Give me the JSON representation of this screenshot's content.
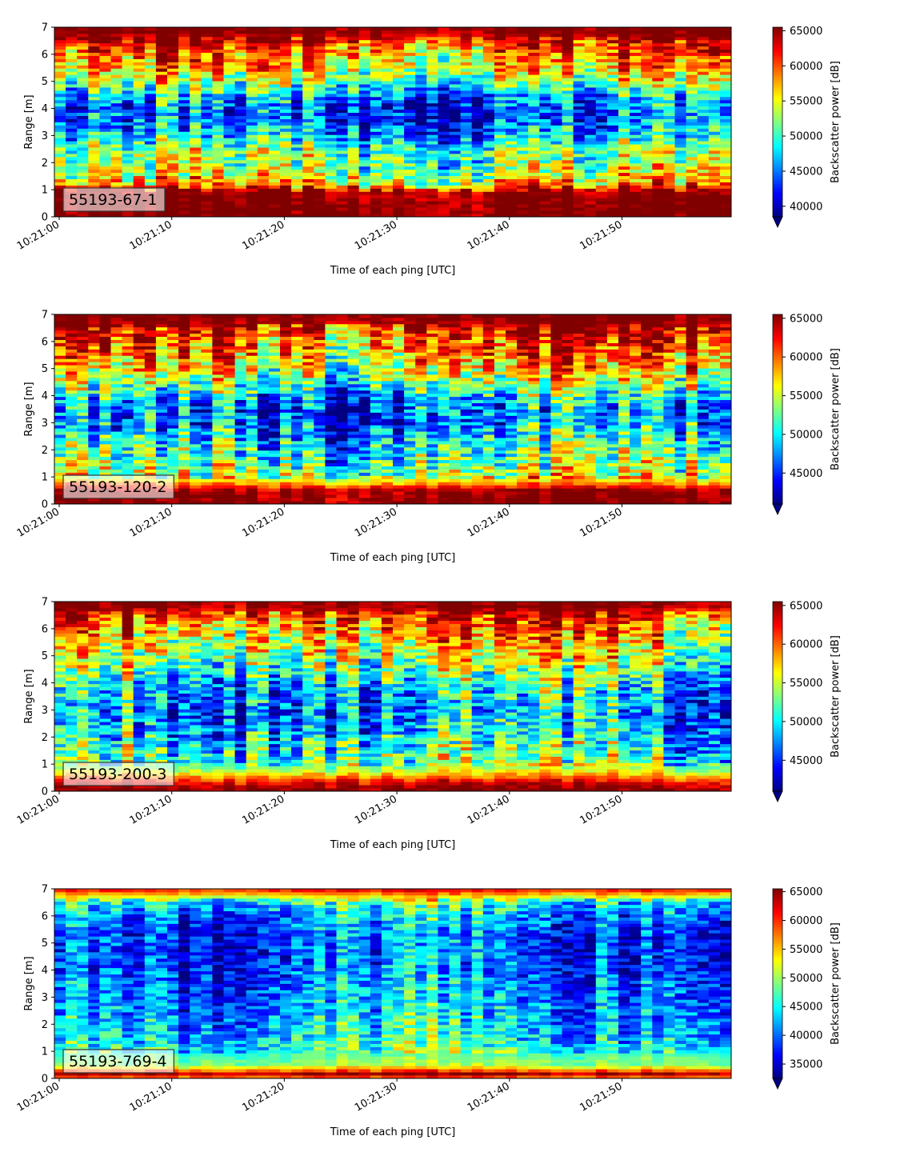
{
  "figure": {
    "colormap": "jet",
    "x_tick_labels": [
      "10:21:00",
      "10:21:10",
      "10:21:20",
      "10:21:30",
      "10:21:40",
      "10:21:50"
    ],
    "y_tick_labels": [
      "0",
      "1",
      "2",
      "3",
      "4",
      "5",
      "6",
      "7"
    ],
    "xlabel": "Time of each ping [UTC]",
    "ylabel": "Range [m]",
    "colorbar_label": "Backscatter power [dB]"
  },
  "chart_data": [
    {
      "type": "heatmap",
      "label": "55193-67-1",
      "xlabel": "Time of each ping [UTC]",
      "ylabel": "Range [m]",
      "x_ticks": [
        "10:21:00",
        "10:21:10",
        "10:21:20",
        "10:21:30",
        "10:21:40",
        "10:21:50"
      ],
      "x_range": [
        "10:21:00",
        "10:21:59"
      ],
      "ylim": [
        0,
        7
      ],
      "colorbar": {
        "label": "Backscatter power [dB]",
        "ticks": [
          40000,
          45000,
          50000,
          55000,
          60000,
          65000
        ],
        "vmin": 38500,
        "vmax": 65500,
        "extend": "min"
      },
      "profile": {
        "range_m": [
          0.0,
          0.2,
          0.6,
          1.0,
          1.2,
          1.6,
          2.0,
          2.5,
          3.0,
          3.5,
          4.0,
          4.5,
          5.0,
          5.5,
          6.0,
          6.5,
          6.8,
          7.0
        ],
        "mean_power": [
          65500,
          65500,
          65500,
          64000,
          57000,
          53500,
          52000,
          51500,
          46500,
          44000,
          43500,
          46000,
          52000,
          56000,
          58500,
          62000,
          65500,
          65500
        ]
      }
    },
    {
      "type": "heatmap",
      "label": "55193-120-2",
      "xlabel": "Time of each ping [UTC]",
      "ylabel": "Range [m]",
      "x_ticks": [
        "10:21:00",
        "10:21:10",
        "10:21:20",
        "10:21:30",
        "10:21:40",
        "10:21:50"
      ],
      "x_range": [
        "10:21:00",
        "10:21:59"
      ],
      "ylim": [
        0,
        7
      ],
      "colorbar": {
        "label": "Backscatter power [dB]",
        "ticks": [
          45000,
          50000,
          55000,
          60000,
          65000
        ],
        "vmin": 41000,
        "vmax": 65500,
        "extend": "min"
      },
      "profile": {
        "range_m": [
          0.0,
          0.1,
          0.5,
          0.8,
          1.0,
          1.5,
          2.0,
          2.5,
          3.0,
          3.5,
          4.0,
          4.5,
          5.0,
          5.5,
          6.0,
          6.5,
          6.8,
          7.0
        ],
        "mean_power": [
          65500,
          65500,
          65000,
          58000,
          54500,
          52500,
          51000,
          49000,
          46500,
          46500,
          49000,
          53000,
          56500,
          58500,
          60500,
          63000,
          65500,
          65500
        ]
      }
    },
    {
      "type": "heatmap",
      "label": "55193-200-3",
      "xlabel": "Time of each ping [UTC]",
      "ylabel": "Range [m]",
      "x_ticks": [
        "10:21:00",
        "10:21:10",
        "10:21:20",
        "10:21:30",
        "10:21:40",
        "10:21:50"
      ],
      "x_range": [
        "10:21:00",
        "10:21:59"
      ],
      "ylim": [
        0,
        7
      ],
      "colorbar": {
        "label": "Backscatter power [dB]",
        "ticks": [
          45000,
          50000,
          55000,
          60000,
          65000
        ],
        "vmin": 41000,
        "vmax": 65500,
        "extend": "min"
      },
      "profile": {
        "range_m": [
          0.0,
          0.1,
          0.4,
          0.7,
          1.0,
          1.5,
          2.0,
          2.5,
          3.0,
          3.5,
          4.0,
          4.5,
          5.0,
          5.5,
          6.0,
          6.5,
          6.8,
          7.0
        ],
        "mean_power": [
          65500,
          65500,
          62000,
          56000,
          53000,
          51500,
          50000,
          48500,
          47500,
          48500,
          50500,
          52500,
          55000,
          57000,
          59000,
          62000,
          65000,
          65500
        ]
      }
    },
    {
      "type": "heatmap",
      "label": "55193-769-4",
      "xlabel": "Time of each ping [UTC]",
      "ylabel": "Range [m]",
      "x_ticks": [
        "10:21:00",
        "10:21:10",
        "10:21:20",
        "10:21:30",
        "10:21:40",
        "10:21:50"
      ],
      "x_range": [
        "10:21:00",
        "10:21:59"
      ],
      "ylim": [
        0,
        7
      ],
      "colorbar": {
        "label": "Backscatter power [dB]",
        "ticks": [
          35000,
          40000,
          45000,
          50000,
          55000,
          60000,
          65000
        ],
        "vmin": 32500,
        "vmax": 65500,
        "extend": "min"
      },
      "profile": {
        "range_m": [
          0.0,
          0.1,
          0.2,
          0.3,
          0.5,
          1.0,
          1.5,
          2.0,
          2.5,
          3.0,
          3.5,
          4.0,
          4.5,
          5.0,
          5.5,
          6.0,
          6.5,
          6.8,
          7.0
        ],
        "mean_power": [
          55000,
          62000,
          65500,
          58000,
          50000,
          47000,
          44500,
          43500,
          42500,
          41500,
          41000,
          40000,
          39000,
          39000,
          40000,
          42000,
          46000,
          56000,
          62000
        ]
      }
    }
  ]
}
